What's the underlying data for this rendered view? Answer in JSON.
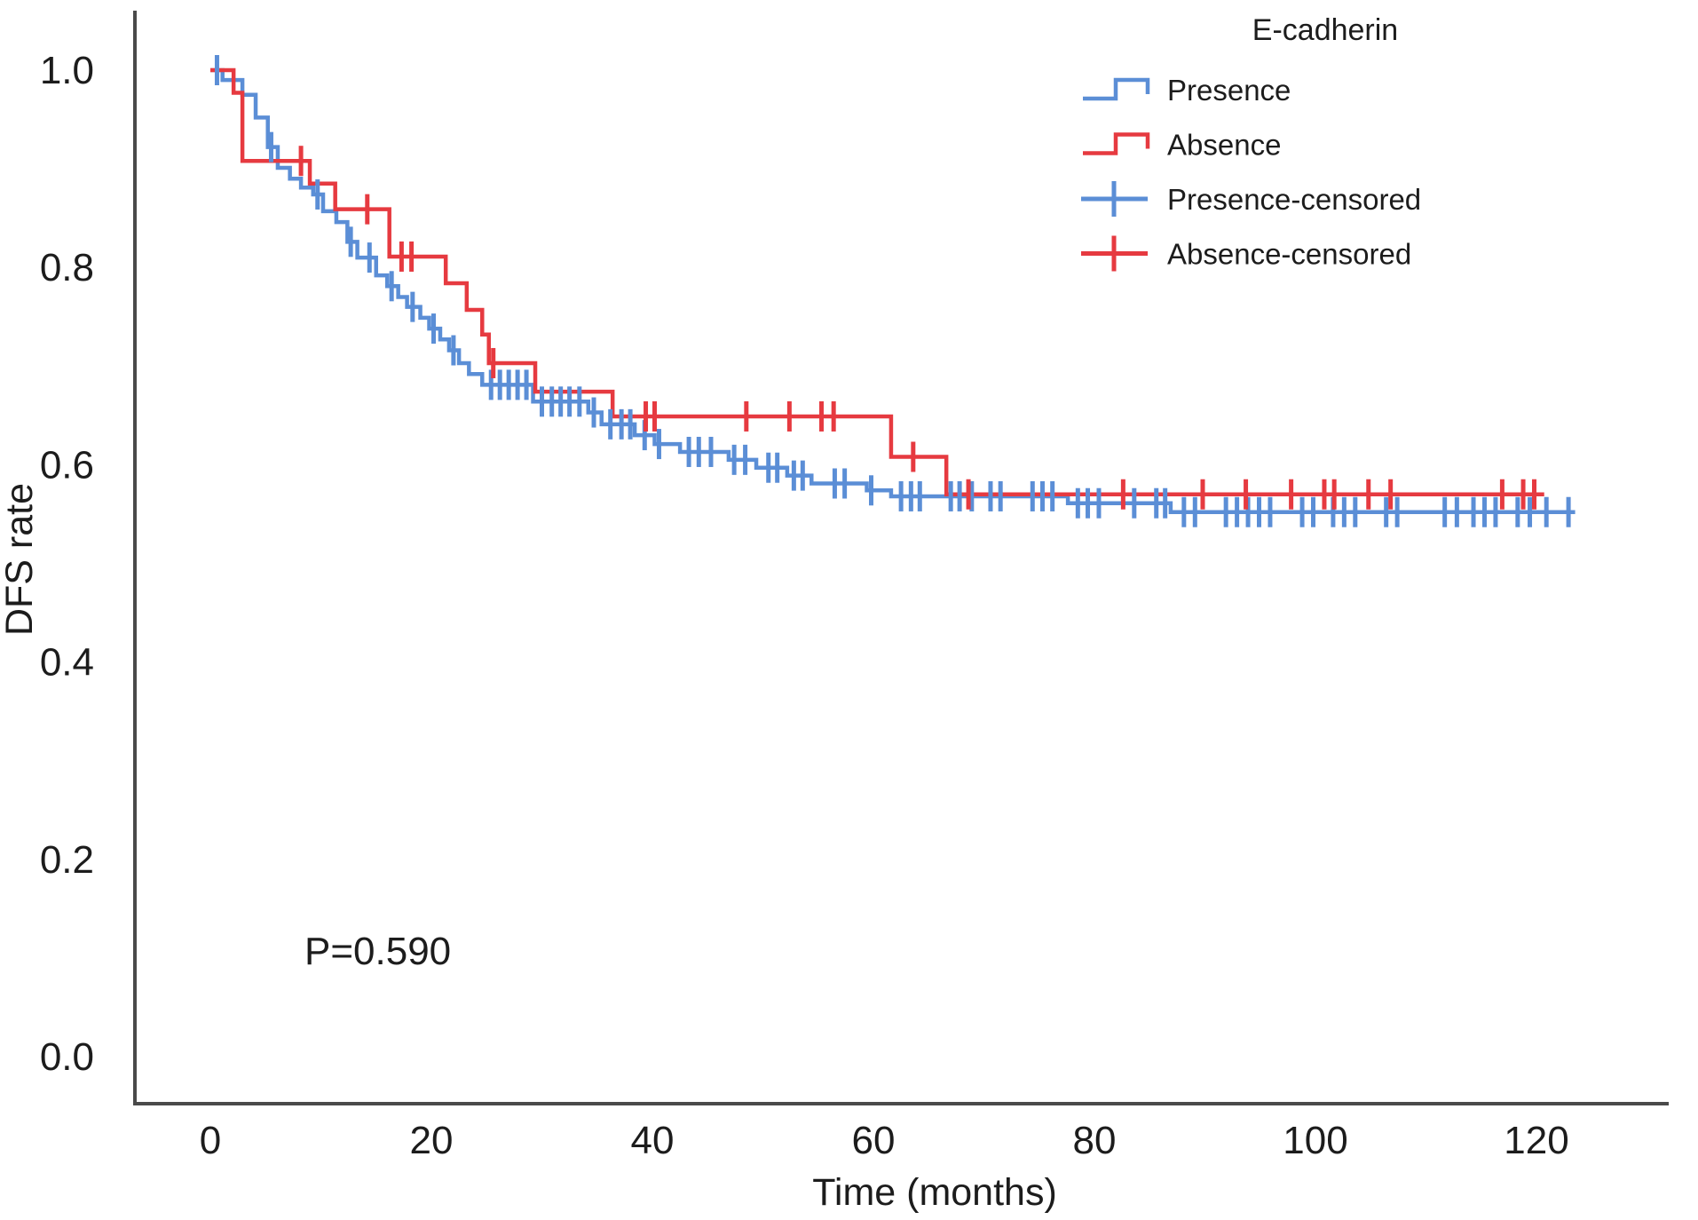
{
  "annotation": {
    "p_value": "P=0.590"
  },
  "legend": {
    "title": "E-cadherin",
    "entries": [
      {
        "label": "Presence",
        "type": "step",
        "series": "Presence"
      },
      {
        "label": "Absence",
        "type": "step",
        "series": "Absence"
      },
      {
        "label": "Presence-censored",
        "type": "censor",
        "series": "Presence"
      },
      {
        "label": "Absence-censored",
        "type": "censor",
        "series": "Absence"
      }
    ]
  },
  "colors": {
    "presence_blue": "#5b8ed6",
    "absence_red": "#e63a40",
    "axis": "#4a4a4a",
    "text": "#1c1c1c"
  },
  "chart_data": {
    "type": "line",
    "subtype": "kaplan-meier-step",
    "title": "",
    "xlabel": "Time (months)",
    "ylabel": "DFS rate",
    "x_ticks": [
      0,
      20,
      40,
      60,
      80,
      100,
      120
    ],
    "y_ticks": [
      "1.0",
      "0.8",
      "0.6",
      "0.4",
      "0.2",
      "0.0"
    ],
    "y_tick_values": [
      1.0,
      0.8,
      0.6,
      0.4,
      0.2,
      0.0
    ],
    "xlim": [
      0,
      130
    ],
    "ylim": [
      0.0,
      1.0
    ],
    "grid": false,
    "legend_position": "top-right",
    "series": [
      {
        "name": "Presence",
        "color": "#5b8ed6",
        "end_t": 123.5,
        "steps": [
          [
            0,
            1.0
          ],
          [
            1.1,
            0.99
          ],
          [
            2.9,
            0.975
          ],
          [
            4.1,
            0.952
          ],
          [
            5.2,
            0.922
          ],
          [
            6.1,
            0.901
          ],
          [
            7.2,
            0.89
          ],
          [
            8.2,
            0.881
          ],
          [
            9.3,
            0.874
          ],
          [
            10.2,
            0.857
          ],
          [
            11.4,
            0.846
          ],
          [
            12.4,
            0.826
          ],
          [
            13.3,
            0.81
          ],
          [
            15.0,
            0.792
          ],
          [
            16.0,
            0.781
          ],
          [
            17.0,
            0.77
          ],
          [
            17.8,
            0.76
          ],
          [
            19.0,
            0.749
          ],
          [
            19.8,
            0.738
          ],
          [
            20.8,
            0.727
          ],
          [
            21.6,
            0.716
          ],
          [
            22.5,
            0.703
          ],
          [
            23.4,
            0.692
          ],
          [
            24.6,
            0.681
          ],
          [
            29.2,
            0.664
          ],
          [
            34.2,
            0.653
          ],
          [
            35.4,
            0.641
          ],
          [
            38.4,
            0.63
          ],
          [
            40.2,
            0.621
          ],
          [
            42.5,
            0.613
          ],
          [
            46.9,
            0.605
          ],
          [
            49.4,
            0.597
          ],
          [
            52.2,
            0.589
          ],
          [
            54.4,
            0.581
          ],
          [
            59.4,
            0.574
          ],
          [
            61.6,
            0.568
          ],
          [
            77.6,
            0.561
          ],
          [
            86.9,
            0.552
          ]
        ],
        "censors": [
          [
            0.6,
            1.0
          ],
          [
            5.5,
            0.922
          ],
          [
            9.7,
            0.874
          ],
          [
            12.7,
            0.826
          ],
          [
            14.4,
            0.81
          ],
          [
            16.4,
            0.781
          ],
          [
            18.3,
            0.76
          ],
          [
            20.2,
            0.738
          ],
          [
            22.0,
            0.716
          ],
          [
            25.4,
            0.681
          ],
          [
            26.2,
            0.681
          ],
          [
            27.0,
            0.681
          ],
          [
            27.8,
            0.681
          ],
          [
            28.6,
            0.681
          ],
          [
            30.0,
            0.664
          ],
          [
            30.9,
            0.664
          ],
          [
            31.7,
            0.664
          ],
          [
            32.5,
            0.664
          ],
          [
            33.4,
            0.664
          ],
          [
            34.7,
            0.653
          ],
          [
            36.2,
            0.641
          ],
          [
            37.2,
            0.641
          ],
          [
            38.0,
            0.641
          ],
          [
            39.3,
            0.63
          ],
          [
            40.6,
            0.621
          ],
          [
            43.3,
            0.613
          ],
          [
            44.2,
            0.613
          ],
          [
            45.3,
            0.613
          ],
          [
            47.4,
            0.605
          ],
          [
            48.4,
            0.605
          ],
          [
            50.5,
            0.597
          ],
          [
            51.3,
            0.597
          ],
          [
            52.8,
            0.589
          ],
          [
            53.6,
            0.589
          ],
          [
            56.5,
            0.581
          ],
          [
            57.4,
            0.581
          ],
          [
            59.8,
            0.574
          ],
          [
            62.5,
            0.568
          ],
          [
            63.4,
            0.568
          ],
          [
            64.2,
            0.568
          ],
          [
            67.0,
            0.568
          ],
          [
            67.8,
            0.568
          ],
          [
            68.9,
            0.568
          ],
          [
            70.6,
            0.568
          ],
          [
            71.5,
            0.568
          ],
          [
            74.4,
            0.568
          ],
          [
            75.3,
            0.568
          ],
          [
            76.2,
            0.568
          ],
          [
            78.5,
            0.561
          ],
          [
            79.4,
            0.561
          ],
          [
            80.4,
            0.561
          ],
          [
            83.6,
            0.561
          ],
          [
            85.6,
            0.561
          ],
          [
            86.4,
            0.561
          ],
          [
            88.1,
            0.552
          ],
          [
            89.1,
            0.552
          ],
          [
            91.9,
            0.552
          ],
          [
            92.9,
            0.552
          ],
          [
            93.9,
            0.552
          ],
          [
            94.9,
            0.552
          ],
          [
            95.9,
            0.552
          ],
          [
            98.8,
            0.552
          ],
          [
            99.8,
            0.552
          ],
          [
            101.6,
            0.552
          ],
          [
            102.6,
            0.552
          ],
          [
            103.6,
            0.552
          ],
          [
            106.4,
            0.552
          ],
          [
            107.4,
            0.552
          ],
          [
            111.7,
            0.552
          ],
          [
            112.8,
            0.552
          ],
          [
            114.3,
            0.552
          ],
          [
            115.3,
            0.552
          ],
          [
            116.3,
            0.552
          ],
          [
            118.3,
            0.552
          ],
          [
            119.4,
            0.552
          ],
          [
            120.9,
            0.552
          ],
          [
            122.9,
            0.552
          ]
        ]
      },
      {
        "name": "Absence",
        "color": "#e63a40",
        "end_t": 120.7,
        "steps": [
          [
            0,
            1.0
          ],
          [
            2.1,
            0.977
          ],
          [
            2.9,
            0.908
          ],
          [
            9.0,
            0.885
          ],
          [
            11.3,
            0.859
          ],
          [
            16.2,
            0.811
          ],
          [
            21.3,
            0.784
          ],
          [
            23.2,
            0.757
          ],
          [
            24.6,
            0.732
          ],
          [
            25.2,
            0.703
          ],
          [
            29.4,
            0.674
          ],
          [
            36.4,
            0.649
          ],
          [
            61.6,
            0.608
          ],
          [
            66.6,
            0.57
          ]
        ],
        "censors": [
          [
            8.2,
            0.908
          ],
          [
            14.2,
            0.859
          ],
          [
            17.3,
            0.811
          ],
          [
            18.2,
            0.811
          ],
          [
            25.6,
            0.703
          ],
          [
            39.4,
            0.649
          ],
          [
            40.2,
            0.649
          ],
          [
            48.5,
            0.649
          ],
          [
            52.4,
            0.649
          ],
          [
            55.3,
            0.649
          ],
          [
            56.4,
            0.649
          ],
          [
            63.6,
            0.608
          ],
          [
            68.6,
            0.57
          ],
          [
            82.6,
            0.57
          ],
          [
            89.8,
            0.57
          ],
          [
            93.7,
            0.57
          ],
          [
            97.8,
            0.57
          ],
          [
            100.8,
            0.57
          ],
          [
            101.7,
            0.57
          ],
          [
            104.8,
            0.57
          ],
          [
            106.8,
            0.57
          ],
          [
            116.9,
            0.57
          ],
          [
            118.8,
            0.57
          ],
          [
            119.8,
            0.57
          ]
        ]
      }
    ],
    "annotations": [
      {
        "text": "P=0.590",
        "x_months": 8.5,
        "y_rate": 0.108
      }
    ]
  }
}
